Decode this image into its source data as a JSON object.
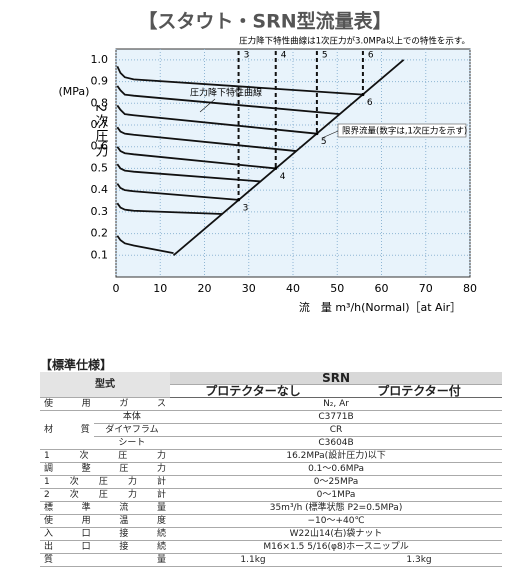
{
  "chart_data": {
    "type": "line",
    "title": "【スタウト・SRN型流量表】",
    "note": "圧力降下特性曲線は1次圧力が3.0MPa以上での特性を示す。",
    "x_label": "流　量 m³/h(Normal)［at Air］",
    "y_label_unit": "(MPa)",
    "y_label": "2次圧力",
    "curve_label": "圧力降下特性曲線",
    "limit_label": "限界流量(数字は,1次圧力を示す)",
    "xlim": [
      0,
      80
    ],
    "xticks": [
      0,
      10,
      20,
      30,
      40,
      50,
      60,
      70,
      80
    ],
    "ylim": [
      0,
      1.05
    ],
    "yticks": [
      0.1,
      0.2,
      0.3,
      0.4,
      0.5,
      0.6,
      0.7,
      0.8,
      0.9,
      {
        "value": 1.0,
        "label": "1.0"
      }
    ],
    "grid": true,
    "color": "#111111",
    "series": [
      {
        "x": [
          0.3,
          1,
          2,
          4,
          13
        ],
        "values": [
          0.19,
          0.17,
          0.155,
          0.145,
          0.11
        ]
      },
      {
        "x": [
          0.3,
          1,
          2,
          4,
          24
        ],
        "values": [
          0.34,
          0.32,
          0.31,
          0.305,
          0.29
        ]
      },
      {
        "x": [
          0.3,
          1,
          2,
          4,
          27.7
        ],
        "values": [
          0.43,
          0.41,
          0.4,
          0.395,
          0.355
        ]
      },
      {
        "x": [
          0.3,
          1,
          2,
          4,
          32.7
        ],
        "values": [
          0.52,
          0.5,
          0.49,
          0.485,
          0.44
        ]
      },
      {
        "x": [
          0.3,
          1,
          2,
          4,
          36.1
        ],
        "values": [
          0.6,
          0.58,
          0.57,
          0.565,
          0.5
        ]
      },
      {
        "x": [
          0.3,
          1,
          2,
          4,
          40.7
        ],
        "values": [
          0.69,
          0.67,
          0.66,
          0.655,
          0.58
        ]
      },
      {
        "x": [
          0.3,
          1,
          2,
          4,
          45.4
        ],
        "values": [
          0.79,
          0.77,
          0.75,
          0.745,
          0.66
        ]
      },
      {
        "x": [
          0.3,
          1,
          2,
          4,
          50.6
        ],
        "values": [
          0.88,
          0.86,
          0.84,
          0.835,
          0.75
        ]
      },
      {
        "x": [
          0.3,
          1,
          2,
          4,
          55.8
        ],
        "values": [
          0.97,
          0.94,
          0.92,
          0.91,
          0.84
        ]
      }
    ],
    "limit_line": {
      "x": [
        13,
        65
      ],
      "values": [
        0.1,
        1.0
      ]
    },
    "limit_markers": [
      {
        "x": 27.7,
        "y": 0.355,
        "label": "3"
      },
      {
        "x": 36.1,
        "y": 0.5,
        "label": "4"
      },
      {
        "x": 45.4,
        "y": 0.66,
        "label": "5"
      },
      {
        "x": 55.8,
        "y": 0.84,
        "label": "6"
      }
    ]
  },
  "spec_table": {
    "title": "【標準仕様】",
    "model_header": "型式",
    "model": "SRN",
    "variants": [
      "プロテクターなし",
      "プロテクター付"
    ],
    "rows": [
      {
        "label": "使用ガス",
        "value": "N₂, Ar"
      },
      {
        "label": "材質",
        "sub": [
          {
            "label": "本体",
            "value": "C3771B"
          },
          {
            "label": "ダイヤフラム",
            "value": "CR"
          },
          {
            "label": "シート",
            "value": "C3604B"
          }
        ]
      },
      {
        "label": "1次圧力",
        "value": "16.2MPa(設計圧力)以下"
      },
      {
        "label": "調整圧力",
        "value": "0.1〜0.6MPa"
      },
      {
        "label": "1次圧力計",
        "value": "0〜25MPa"
      },
      {
        "label": "2次圧力計",
        "value": "0〜1MPa"
      },
      {
        "label": "標準流量",
        "value": "35m³/h (標準状態 P2=0.5MPa)"
      },
      {
        "label": "使用温度",
        "value": "−10〜+40℃"
      },
      {
        "label": "入口接続",
        "value": "W22山14(右)袋ナット"
      },
      {
        "label": "出口接続",
        "value": "M16×1.5 5/16(φ8)ホースニップル"
      },
      {
        "label": "質量",
        "values": [
          "1.1kg",
          "1.3kg"
        ]
      }
    ]
  }
}
